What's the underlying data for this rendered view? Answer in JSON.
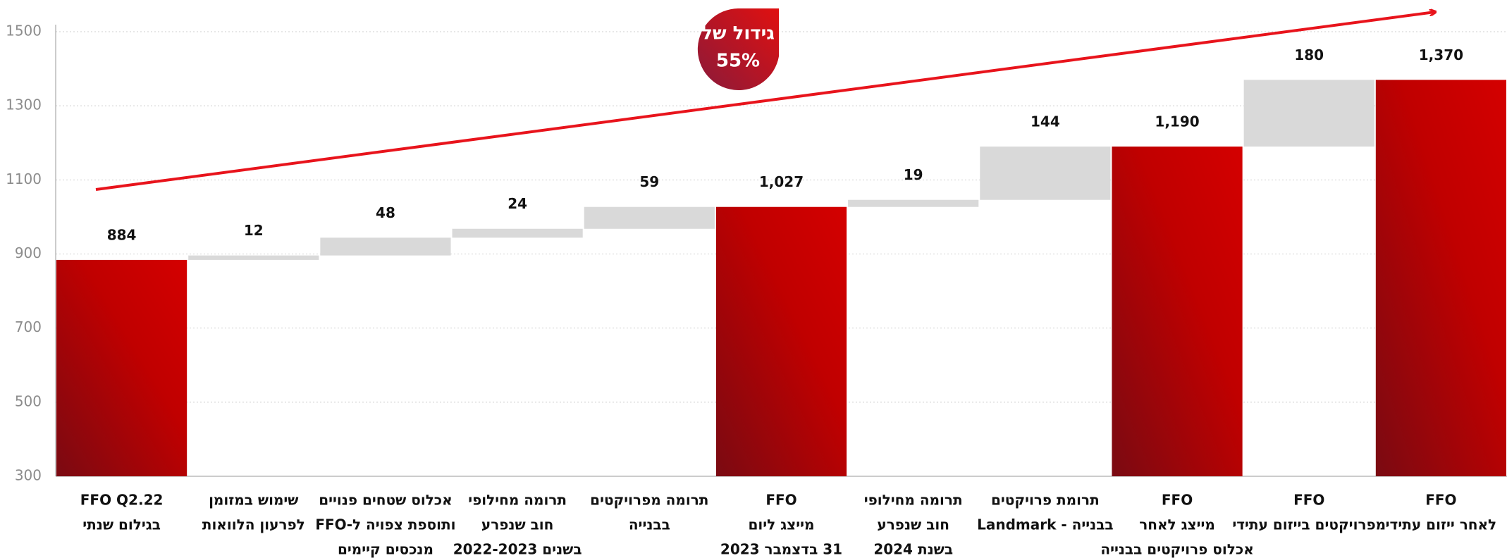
{
  "chart_data": {
    "type": "waterfall",
    "annotation": [
      "גידול של",
      "55%"
    ],
    "categories": [
      [
        "FFO  Q2.22",
        "בגילום שנתי"
      ],
      [
        "שימוש במזומן",
        "לפרעון הלוואות"
      ],
      [
        "אכלוס שטחים פנויים",
        "ותוספת צפויה ל-FFO",
        "מנכסים קיימים"
      ],
      [
        "תרומה מחילופי",
        "חוב שנפרע",
        "בשנים 2022-2023"
      ],
      [
        "תרומה מפרויקטים",
        "בבנייה"
      ],
      [
        "FFO",
        "מייצג ליום",
        "31 בדצמבר 2023"
      ],
      [
        "תרומה מחילופי",
        "חוב שנפרע",
        "בשנת 2024"
      ],
      [
        "תרומת פרויקטים",
        "בבנייה - Landmark"
      ],
      [
        "FFO",
        "מייצג לאחר",
        "אכלוס פרויקטים בבנייה"
      ],
      [
        "FFO",
        "מפרויקטים בייזום עתידי"
      ],
      [
        "FFO",
        "לאחר ייזום עתידי"
      ]
    ],
    "values": [
      884,
      12,
      48,
      24,
      59,
      1027,
      19,
      144,
      1190,
      180,
      1370
    ],
    "value_labels": [
      "884",
      "12",
      "48",
      "24",
      "59",
      "1,027",
      "19",
      "144",
      "1,190",
      "180",
      "1,370"
    ],
    "measure": [
      "total",
      "relative",
      "relative",
      "relative",
      "relative",
      "total",
      "relative",
      "relative",
      "total",
      "relative",
      "total"
    ],
    "total_color": "#c00000",
    "increase_color": "#d9d9d9",
    "ylim": [
      300,
      1500
    ],
    "yticks": [
      300,
      500,
      700,
      900,
      1100,
      1300,
      1500
    ],
    "grid": true
  }
}
